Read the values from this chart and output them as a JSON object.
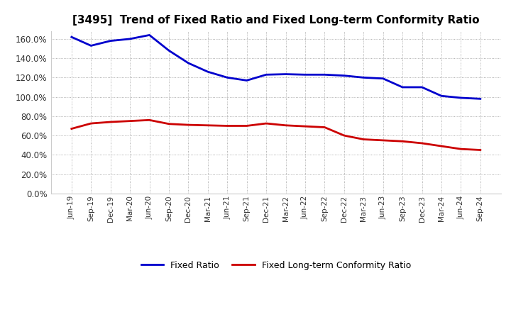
{
  "title": "[3495]  Trend of Fixed Ratio and Fixed Long-term Conformity Ratio",
  "labels": [
    "Jun-19",
    "Sep-19",
    "Dec-19",
    "Mar-20",
    "Jun-20",
    "Sep-20",
    "Dec-20",
    "Mar-21",
    "Jun-21",
    "Sep-21",
    "Dec-21",
    "Mar-22",
    "Jun-22",
    "Sep-22",
    "Dec-22",
    "Mar-23",
    "Jun-23",
    "Sep-23",
    "Dec-23",
    "Mar-24",
    "Jun-24",
    "Sep-24"
  ],
  "fixed_ratio": [
    162.0,
    153.0,
    158.0,
    160.0,
    164.0,
    148.0,
    135.0,
    126.0,
    120.0,
    117.0,
    123.0,
    123.5,
    123.0,
    123.0,
    122.0,
    120.0,
    119.0,
    110.0,
    110.0,
    101.0,
    99.0,
    98.0
  ],
  "fixed_lt_ratio": [
    67.0,
    72.5,
    74.0,
    75.0,
    76.0,
    72.0,
    71.0,
    70.5,
    70.0,
    70.0,
    72.5,
    70.5,
    69.5,
    68.5,
    60.0,
    56.0,
    55.0,
    54.0,
    52.0,
    49.0,
    46.0,
    45.0
  ],
  "fixed_ratio_color": "#0000cd",
  "fixed_lt_ratio_color": "#cc0000",
  "ylim": [
    0,
    168
  ],
  "yticks": [
    0,
    20,
    40,
    60,
    80,
    100,
    120,
    140,
    160
  ],
  "background_color": "#ffffff",
  "plot_bg_color": "#ffffff",
  "grid_color": "#999999",
  "legend_fixed_ratio": "Fixed Ratio",
  "legend_fixed_lt_ratio": "Fixed Long-term Conformity Ratio",
  "line_width": 2.0,
  "title_fontsize": 11,
  "tick_fontsize": 7.5,
  "ytick_fontsize": 8.5
}
